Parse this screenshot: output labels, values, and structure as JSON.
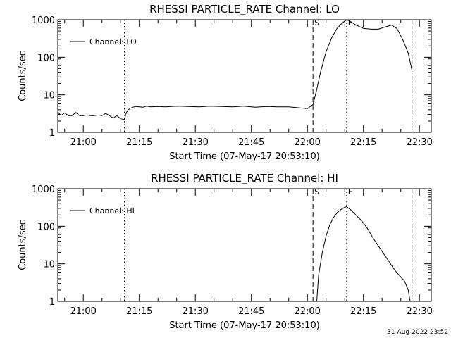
{
  "chart_data": [
    {
      "type": "line",
      "title": "RHESSI PARTICLE_RATE Channel: LO",
      "xlabel": "Start Time (07-May-17 20:53:10)",
      "ylabel": "Counts/sec",
      "y_scale": "log",
      "ylim": [
        1,
        1000
      ],
      "xlim": [
        "20:53:10",
        "22:33:10"
      ],
      "x_ticks": [
        "21:00",
        "21:15",
        "21:30",
        "21:45",
        "22:00",
        "22:15",
        "22:30"
      ],
      "y_ticks": [
        "1",
        "10",
        "100",
        "1000"
      ],
      "legend": {
        "label": "Channel: LO",
        "placement": "top-left"
      },
      "markers": [
        {
          "time": "21:11:00",
          "style": "dotted",
          "label": ""
        },
        {
          "time": "22:01:30",
          "style": "dashed",
          "label": "S"
        },
        {
          "time": "22:10:30",
          "style": "dotted",
          "label": "E"
        },
        {
          "time": "22:28:00",
          "style": "dash-dot",
          "label": ""
        }
      ],
      "series": [
        {
          "name": "Channel: LO",
          "x": [
            "20:53:10",
            "20:54:00",
            "20:55:00",
            "20:56:00",
            "20:57:00",
            "20:58:00",
            "20:59:00",
            "21:00:00",
            "21:01:00",
            "21:02:00",
            "21:03:00",
            "21:04:00",
            "21:05:00",
            "21:06:00",
            "21:07:00",
            "21:08:00",
            "21:09:00",
            "21:10:00",
            "21:11:00",
            "21:11:30",
            "21:12:00",
            "21:13:00",
            "21:14:00",
            "21:15:00",
            "21:16:00",
            "21:17:00",
            "21:18:00",
            "21:20:00",
            "21:22:00",
            "21:25:00",
            "21:28:00",
            "21:31:00",
            "21:34:00",
            "21:37:00",
            "21:40:00",
            "21:43:00",
            "21:46:00",
            "21:49:00",
            "21:52:00",
            "21:55:00",
            "21:58:00",
            "22:00:00",
            "22:01:30",
            "22:02:30",
            "22:03:30",
            "22:05:00",
            "22:06:30",
            "22:08:00",
            "22:09:30",
            "22:10:30",
            "22:11:30",
            "22:13:00",
            "22:15:00",
            "22:17:00",
            "22:19:00",
            "22:21:00",
            "22:22:30",
            "22:24:00",
            "22:25:30",
            "22:27:00",
            "22:28:00"
          ],
          "y": [
            3.5,
            2.8,
            3.3,
            2.8,
            2.8,
            3.4,
            2.8,
            2.8,
            2.9,
            2.8,
            2.8,
            2.9,
            2.8,
            3.2,
            2.8,
            2.4,
            2.8,
            2.3,
            2.2,
            3.3,
            4.0,
            4.6,
            4.9,
            4.8,
            4.7,
            5.0,
            4.8,
            4.9,
            4.8,
            5.0,
            4.9,
            4.8,
            5.0,
            4.9,
            4.8,
            5.0,
            4.7,
            4.9,
            4.8,
            4.8,
            4.5,
            4.3,
            5.5,
            14,
            40,
            140,
            330,
            600,
            850,
            1000,
            900,
            720,
            590,
            560,
            560,
            650,
            720,
            580,
            300,
            130,
            45
          ]
        }
      ]
    },
    {
      "type": "line",
      "title": "RHESSI PARTICLE_RATE Channel: HI",
      "xlabel": "Start Time (07-May-17 20:53:10)",
      "ylabel": "Counts/sec",
      "y_scale": "log",
      "ylim": [
        1,
        1000
      ],
      "xlim": [
        "20:53:10",
        "22:33:10"
      ],
      "x_ticks": [
        "21:00",
        "21:15",
        "21:30",
        "21:45",
        "22:00",
        "22:15",
        "22:30"
      ],
      "y_ticks": [
        "1",
        "10",
        "100",
        "1000"
      ],
      "legend": {
        "label": "Channel: HI",
        "placement": "top-left"
      },
      "markers": [
        {
          "time": "21:11:00",
          "style": "dotted",
          "label": ""
        },
        {
          "time": "22:01:30",
          "style": "dashed",
          "label": "S"
        },
        {
          "time": "22:10:30",
          "style": "dotted",
          "label": "E"
        },
        {
          "time": "22:28:00",
          "style": "dash-dot",
          "label": ""
        }
      ],
      "series": [
        {
          "name": "Channel: HI",
          "x": [
            "22:02:30",
            "22:03:00",
            "22:04:00",
            "22:05:00",
            "22:06:00",
            "22:07:00",
            "22:08:00",
            "22:09:00",
            "22:10:00",
            "22:10:30",
            "22:11:30",
            "22:13:00",
            "22:14:30",
            "22:16:00",
            "22:17:30",
            "22:19:00",
            "22:20:30",
            "22:22:00",
            "22:23:30",
            "22:25:00",
            "22:26:00",
            "22:27:00",
            "22:27:30"
          ],
          "y": [
            1.0,
            5.0,
            20,
            55,
            110,
            170,
            230,
            280,
            320,
            330,
            280,
            200,
            140,
            90,
            50,
            30,
            18,
            11,
            6.5,
            4.5,
            3.5,
            2.0,
            1.0
          ]
        }
      ]
    }
  ],
  "footer": {
    "timestamp": "31-Aug-2022 23:52"
  }
}
